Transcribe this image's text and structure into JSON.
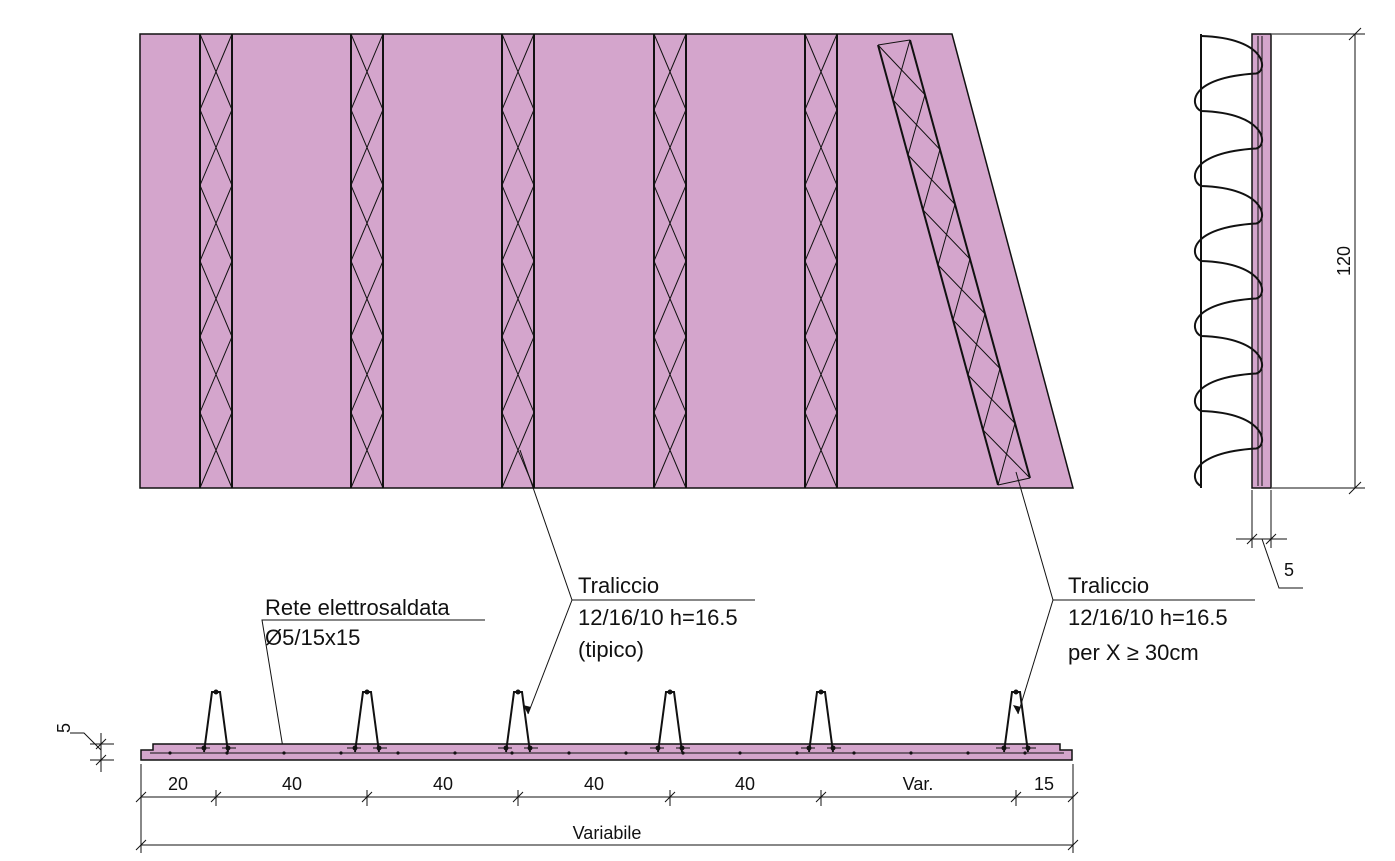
{
  "colors": {
    "panel_fill": "#d4a5cc",
    "line": "#111111",
    "background": "#ffffff"
  },
  "callouts": {
    "mesh": {
      "title": "Rete elettrosaldata",
      "spec": "Ø5/15x15"
    },
    "truss_typical": {
      "title": "Traliccio",
      "spec": "12/16/10 h=16.5",
      "note": "(tipico)"
    },
    "truss_oblique": {
      "title": "Traliccio",
      "spec": "12/16/10 h=16.5",
      "note": "per X ≥ 30cm"
    }
  },
  "dimensions": {
    "height": "120",
    "side_thickness": "5",
    "section_thickness": "5",
    "spacing": [
      "20",
      "40",
      "40",
      "40",
      "40",
      "Var.",
      "15"
    ],
    "total": "Variabile"
  }
}
